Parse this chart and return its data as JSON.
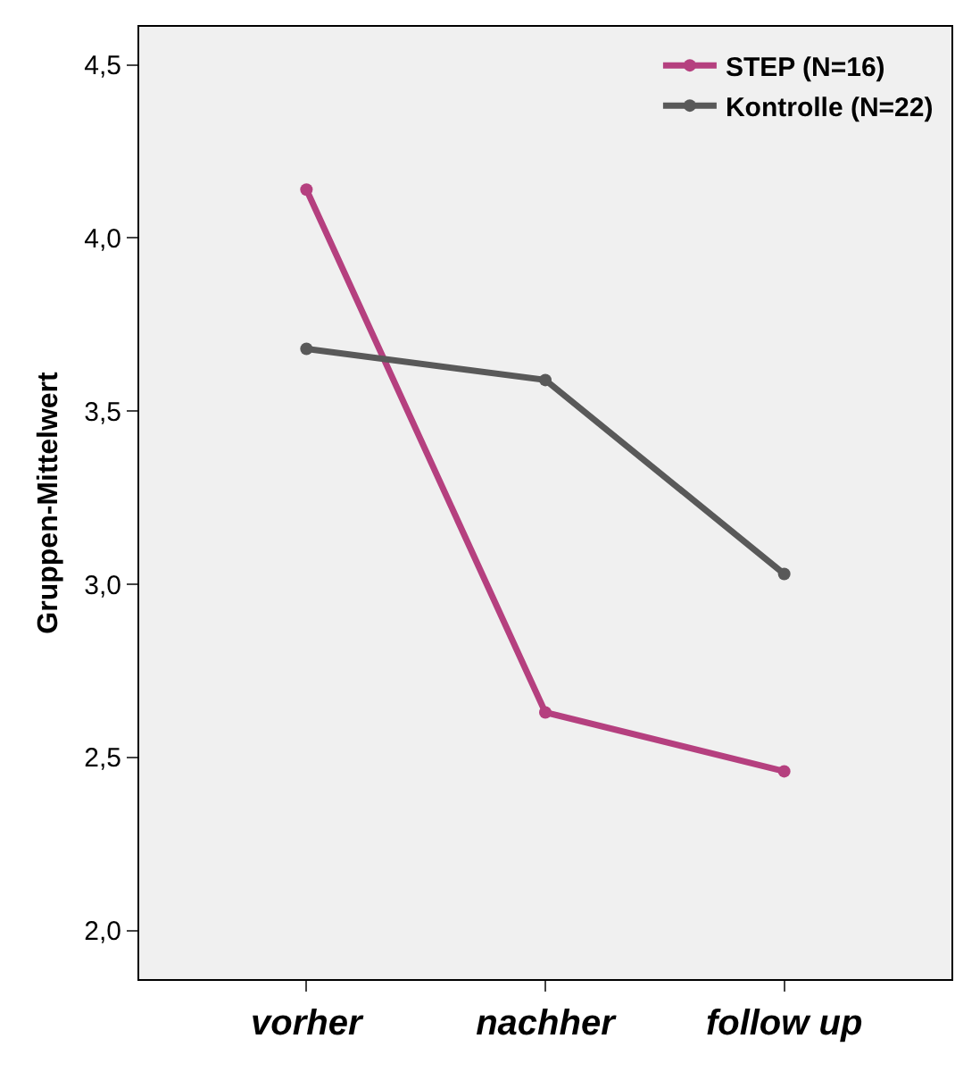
{
  "chart_data": {
    "type": "line",
    "ylabel": "Gruppen-Mittelwert",
    "categories": [
      "vorher",
      "nachher",
      "follow up"
    ],
    "series": [
      {
        "name": "STEP (N=16)",
        "color": "#b5407f",
        "values": [
          4.14,
          2.63,
          2.46
        ]
      },
      {
        "name": "Kontrolle (N=22)",
        "color": "#595959",
        "values": [
          3.68,
          3.59,
          3.03
        ]
      }
    ],
    "ylim": [
      1.86,
      4.61
    ],
    "yticks": [
      {
        "value": 2,
        "label": "2,0"
      },
      {
        "value": 2.5,
        "label": "2,5"
      },
      {
        "value": 3,
        "label": "3,0"
      },
      {
        "value": 3.5,
        "label": "3,5"
      },
      {
        "value": 4,
        "label": "4,0"
      },
      {
        "value": 4.5,
        "label": "4,5"
      }
    ],
    "grid": false,
    "legend": "top right",
    "marker": "circle",
    "line_style": "solid"
  }
}
